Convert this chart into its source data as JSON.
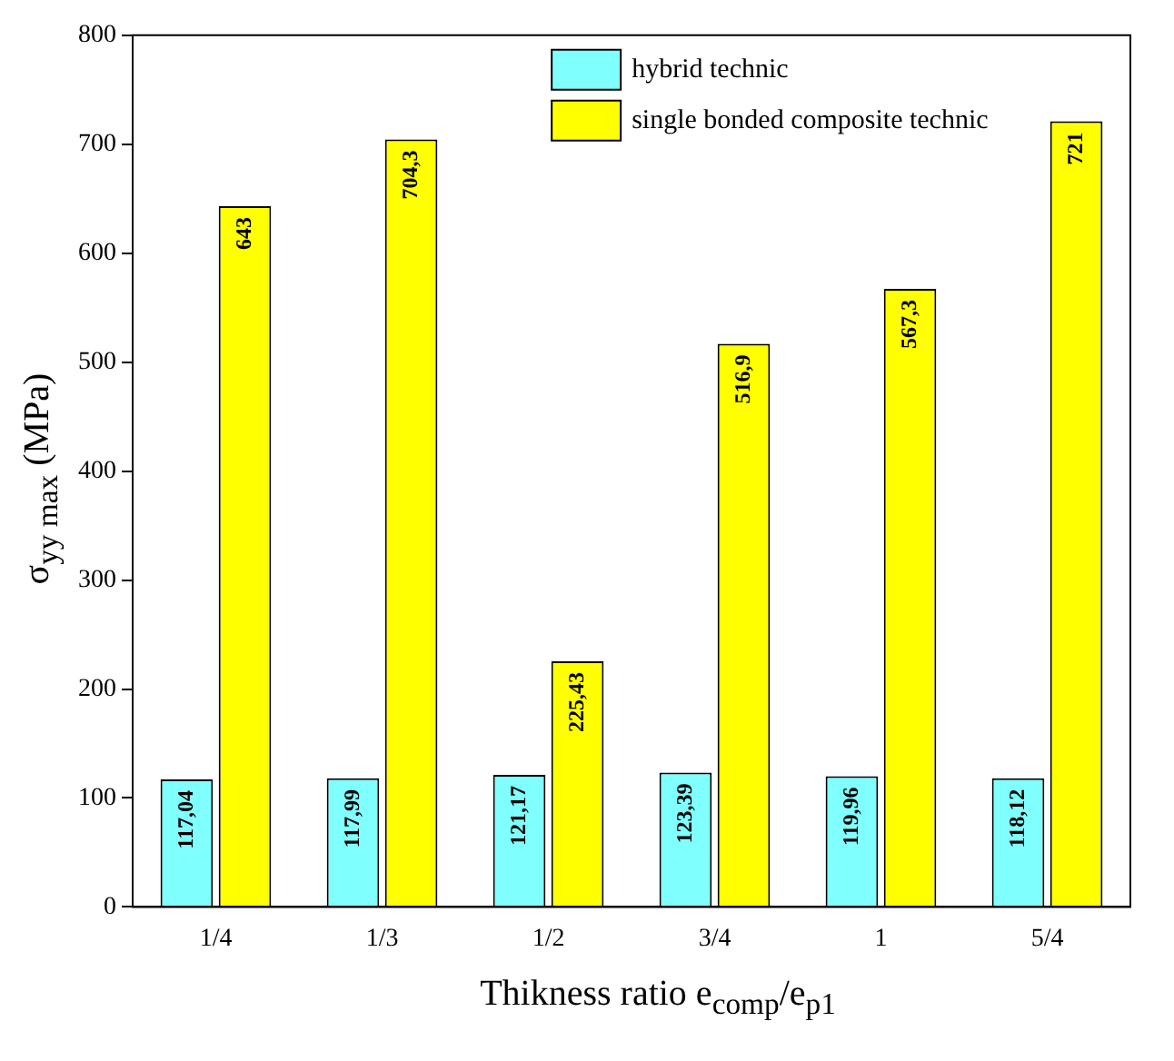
{
  "chart_data": {
    "type": "bar",
    "xlabel": "Thikness ratio e$_{comp}$/e$_{p1}$",
    "ylabel": "σ$_{yy max}$ (MPa)",
    "categories": [
      "1/4",
      "1/3",
      "1/2",
      "3/4",
      "1",
      "5/4"
    ],
    "series": [
      {
        "name": "hybrid technic",
        "color": "#80ffff",
        "values": [
          117.04,
          117.99,
          121.17,
          123.39,
          119.96,
          118.12
        ],
        "value_labels": [
          "117,04",
          "117,99",
          "121,17",
          "123,39",
          "119,96",
          "118,12"
        ]
      },
      {
        "name": "single bonded composite technic",
        "color": "#ffff00",
        "values": [
          643,
          704.3,
          225.43,
          516.9,
          567.3,
          721
        ],
        "value_labels": [
          "643",
          "704,3",
          "225,43",
          "516,9",
          "567,3",
          "721"
        ]
      }
    ],
    "ylim": [
      0,
      800
    ],
    "yticks": [
      0,
      100,
      200,
      300,
      400,
      500,
      600,
      700,
      800
    ],
    "legend": "top",
    "grid": false
  }
}
